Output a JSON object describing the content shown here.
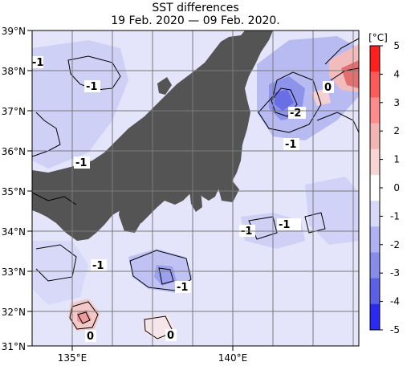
{
  "title": "SST differences",
  "date_range": "19 Feb. 2020 — 09 Feb. 2020.",
  "lat_labels": [
    "39°N",
    "38°N",
    "37°N",
    "36°N",
    "35°N",
    "34°N",
    "33°N",
    "32°N",
    "31°N"
  ],
  "lon_labels": [
    "135°E",
    "140°E"
  ],
  "colorbar": {
    "unit": "[°C]",
    "ticks": [
      "5",
      "4",
      "3",
      "2",
      "1",
      "0",
      "-1",
      "-2",
      "-3",
      "-4",
      "-5"
    ],
    "colors": [
      "#ff1f1f",
      "#ff5a5a",
      "#ff8c8c",
      "#f5b4b4",
      "#f8d4d4",
      "#ffffff",
      "#d8d8f8",
      "#aeb2f2",
      "#878cec",
      "#5c60e6",
      "#2a2af2"
    ]
  },
  "contour_labels": [
    "-1",
    "-1",
    "-1",
    "-1",
    "-1",
    "-1",
    "-1",
    "-1",
    "-1",
    "0",
    "-2",
    "0",
    "0"
  ]
}
